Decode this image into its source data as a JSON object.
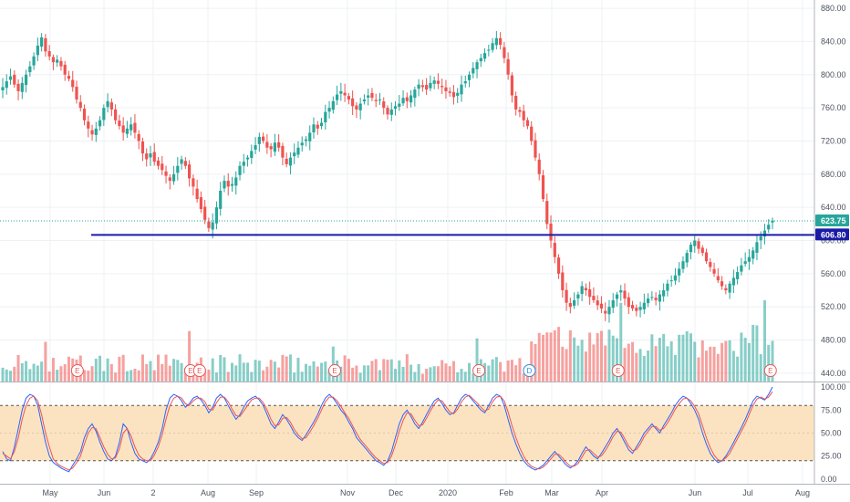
{
  "chart_data": [
    {
      "type": "candlestick",
      "price_axis": {
        "ylim": [
          430,
          890
        ],
        "ticks": [
          "880.00",
          "840.00",
          "800.00",
          "760.00",
          "720.00",
          "680.00",
          "640.00",
          "600.00",
          "560.00",
          "520.00",
          "480.00",
          "440.00"
        ]
      },
      "x_axis_labels": [
        "May",
        "Jun",
        "2",
        "Aug",
        "Sep",
        "Nov",
        "Dec",
        "2020",
        "Feb",
        "Mar",
        "Apr",
        "Jun",
        "Jul",
        "Aug"
      ],
      "current_price": {
        "value": 623.75,
        "label": "623.75",
        "color": "#26a69a"
      },
      "horizontal_line": {
        "value": 606.8,
        "label": "606.80",
        "color": "#1a1aa6"
      },
      "colors": {
        "up": "#26a69a",
        "down": "#ef5350"
      },
      "events": [
        {
          "label": "E",
          "position": 0.095,
          "kind": "earnings"
        },
        {
          "label": "E",
          "position": 0.234,
          "kind": "earnings"
        },
        {
          "label": "E",
          "position": 0.245,
          "kind": "earnings"
        },
        {
          "label": "E",
          "position": 0.411,
          "kind": "earnings"
        },
        {
          "label": "E",
          "position": 0.588,
          "kind": "earnings"
        },
        {
          "label": "D",
          "position": 0.65,
          "kind": "dividend"
        },
        {
          "label": "E",
          "position": 0.759,
          "kind": "earnings"
        },
        {
          "label": "E",
          "position": 0.946,
          "kind": "earnings"
        }
      ],
      "closes": [
        785,
        792,
        798,
        788,
        780,
        790,
        800,
        810,
        822,
        835,
        845,
        828,
        822,
        815,
        818,
        810,
        800,
        795,
        785,
        770,
        760,
        745,
        735,
        728,
        735,
        745,
        760,
        768,
        758,
        745,
        738,
        730,
        735,
        740,
        730,
        720,
        705,
        698,
        705,
        695,
        690,
        685,
        678,
        672,
        680,
        690,
        698,
        690,
        675,
        665,
        650,
        638,
        625,
        615,
        622,
        640,
        660,
        672,
        665,
        668,
        676,
        690,
        695,
        700,
        708,
        715,
        725,
        720,
        712,
        710,
        718,
        712,
        700,
        692,
        700,
        706,
        712,
        718,
        722,
        730,
        740,
        735,
        742,
        755,
        760,
        768,
        776,
        780,
        775,
        770,
        762,
        758,
        765,
        770,
        775,
        772,
        768,
        770,
        760,
        752,
        758,
        762,
        765,
        772,
        768,
        775,
        782,
        788,
        785,
        782,
        790,
        793,
        789,
        785,
        780,
        778,
        773,
        778,
        788,
        792,
        800,
        808,
        815,
        820,
        826,
        830,
        838,
        844,
        836,
        820,
        800,
        775,
        758,
        755,
        745,
        738,
        720,
        700,
        680,
        650,
        620,
        600,
        580,
        560,
        540,
        525,
        520,
        528,
        535,
        545,
        540,
        532,
        528,
        522,
        518,
        512,
        520,
        528,
        535,
        540,
        530,
        520,
        518,
        515,
        520,
        525,
        530,
        532,
        528,
        535,
        540,
        548,
        552,
        558,
        566,
        575,
        585,
        595,
        600,
        590,
        585,
        575,
        568,
        560,
        552,
        545,
        540,
        548,
        555,
        562,
        570,
        575,
        580,
        588,
        598,
        605,
        612,
        619,
        624
      ]
    },
    {
      "type": "line",
      "indicator": "stochastic",
      "ylim": [
        -5,
        105
      ],
      "ticks": [
        "100.00",
        "75.00",
        "50.00",
        "25.00",
        "0.00"
      ],
      "upper_band": 80,
      "lower_band": 20,
      "band_color": "#fbe3c1",
      "series": [
        {
          "color": "#2962ff",
          "values": [
            30,
            22,
            20,
            35,
            55,
            75,
            88,
            92,
            90,
            80,
            60,
            40,
            25,
            18,
            15,
            12,
            10,
            8,
            15,
            22,
            30,
            45,
            55,
            60,
            52,
            40,
            30,
            22,
            20,
            25,
            40,
            60,
            55,
            40,
            28,
            22,
            20,
            18,
            22,
            30,
            40,
            55,
            75,
            88,
            92,
            90,
            85,
            78,
            82,
            88,
            90,
            86,
            80,
            72,
            78,
            88,
            92,
            88,
            80,
            72,
            65,
            70,
            78,
            85,
            88,
            90,
            86,
            80,
            70,
            60,
            55,
            62,
            70,
            65,
            58,
            50,
            45,
            42,
            48,
            55,
            62,
            70,
            80,
            88,
            92,
            88,
            82,
            75,
            70,
            62,
            55,
            45,
            40,
            35,
            30,
            25,
            20,
            18,
            15,
            20,
            30,
            45,
            60,
            70,
            75,
            68,
            60,
            55,
            62,
            70,
            78,
            85,
            88,
            82,
            75,
            70,
            72,
            80,
            88,
            92,
            90,
            85,
            80,
            75,
            72,
            80,
            88,
            92,
            90,
            80,
            65,
            50,
            38,
            28,
            20,
            15,
            12,
            10,
            12,
            15,
            20,
            25,
            30,
            25,
            20,
            15,
            12,
            15,
            20,
            28,
            35,
            30,
            25,
            22,
            28,
            35,
            42,
            50,
            55,
            48,
            40,
            32,
            28,
            35,
            42,
            50,
            55,
            60,
            55,
            50,
            58,
            65,
            72,
            80,
            86,
            90,
            88,
            82,
            75,
            65,
            50,
            38,
            28,
            22,
            18,
            20,
            25,
            32,
            40,
            48,
            56,
            65,
            75,
            85,
            90,
            88,
            86,
            92,
            100
          ]
        },
        {
          "color": "#ef5350",
          "values": [
            28,
            25,
            22,
            30,
            45,
            65,
            80,
            88,
            90,
            85,
            70,
            50,
            35,
            22,
            17,
            14,
            12,
            10,
            12,
            18,
            25,
            38,
            50,
            56,
            55,
            45,
            35,
            27,
            22,
            23,
            33,
            50,
            55,
            47,
            35,
            26,
            22,
            20,
            20,
            26,
            35,
            48,
            65,
            80,
            88,
            90,
            88,
            82,
            80,
            85,
            88,
            88,
            84,
            76,
            75,
            83,
            89,
            89,
            84,
            76,
            69,
            68,
            74,
            80,
            86,
            88,
            88,
            83,
            75,
            65,
            58,
            59,
            66,
            67,
            62,
            54,
            48,
            44,
            45,
            51,
            58,
            66,
            75,
            84,
            89,
            89,
            85,
            79,
            72,
            66,
            58,
            50,
            43,
            38,
            33,
            28,
            23,
            20,
            17,
            18,
            25,
            37,
            52,
            64,
            72,
            71,
            64,
            58,
            59,
            66,
            74,
            81,
            86,
            85,
            79,
            73,
            71,
            76,
            84,
            89,
            91,
            87,
            83,
            78,
            74,
            76,
            84,
            89,
            90,
            85,
            73,
            58,
            45,
            34,
            25,
            18,
            14,
            12,
            11,
            13,
            17,
            22,
            27,
            27,
            23,
            18,
            14,
            14,
            17,
            24,
            31,
            32,
            28,
            24,
            25,
            31,
            38,
            46,
            52,
            51,
            44,
            36,
            31,
            32,
            38,
            46,
            52,
            57,
            57,
            53,
            55,
            61,
            68,
            76,
            82,
            87,
            88,
            85,
            79,
            71,
            58,
            45,
            34,
            26,
            21,
            20,
            23,
            28,
            36,
            44,
            52,
            60,
            70,
            80,
            87,
            89,
            87,
            89,
            95
          ]
        }
      ]
    }
  ]
}
